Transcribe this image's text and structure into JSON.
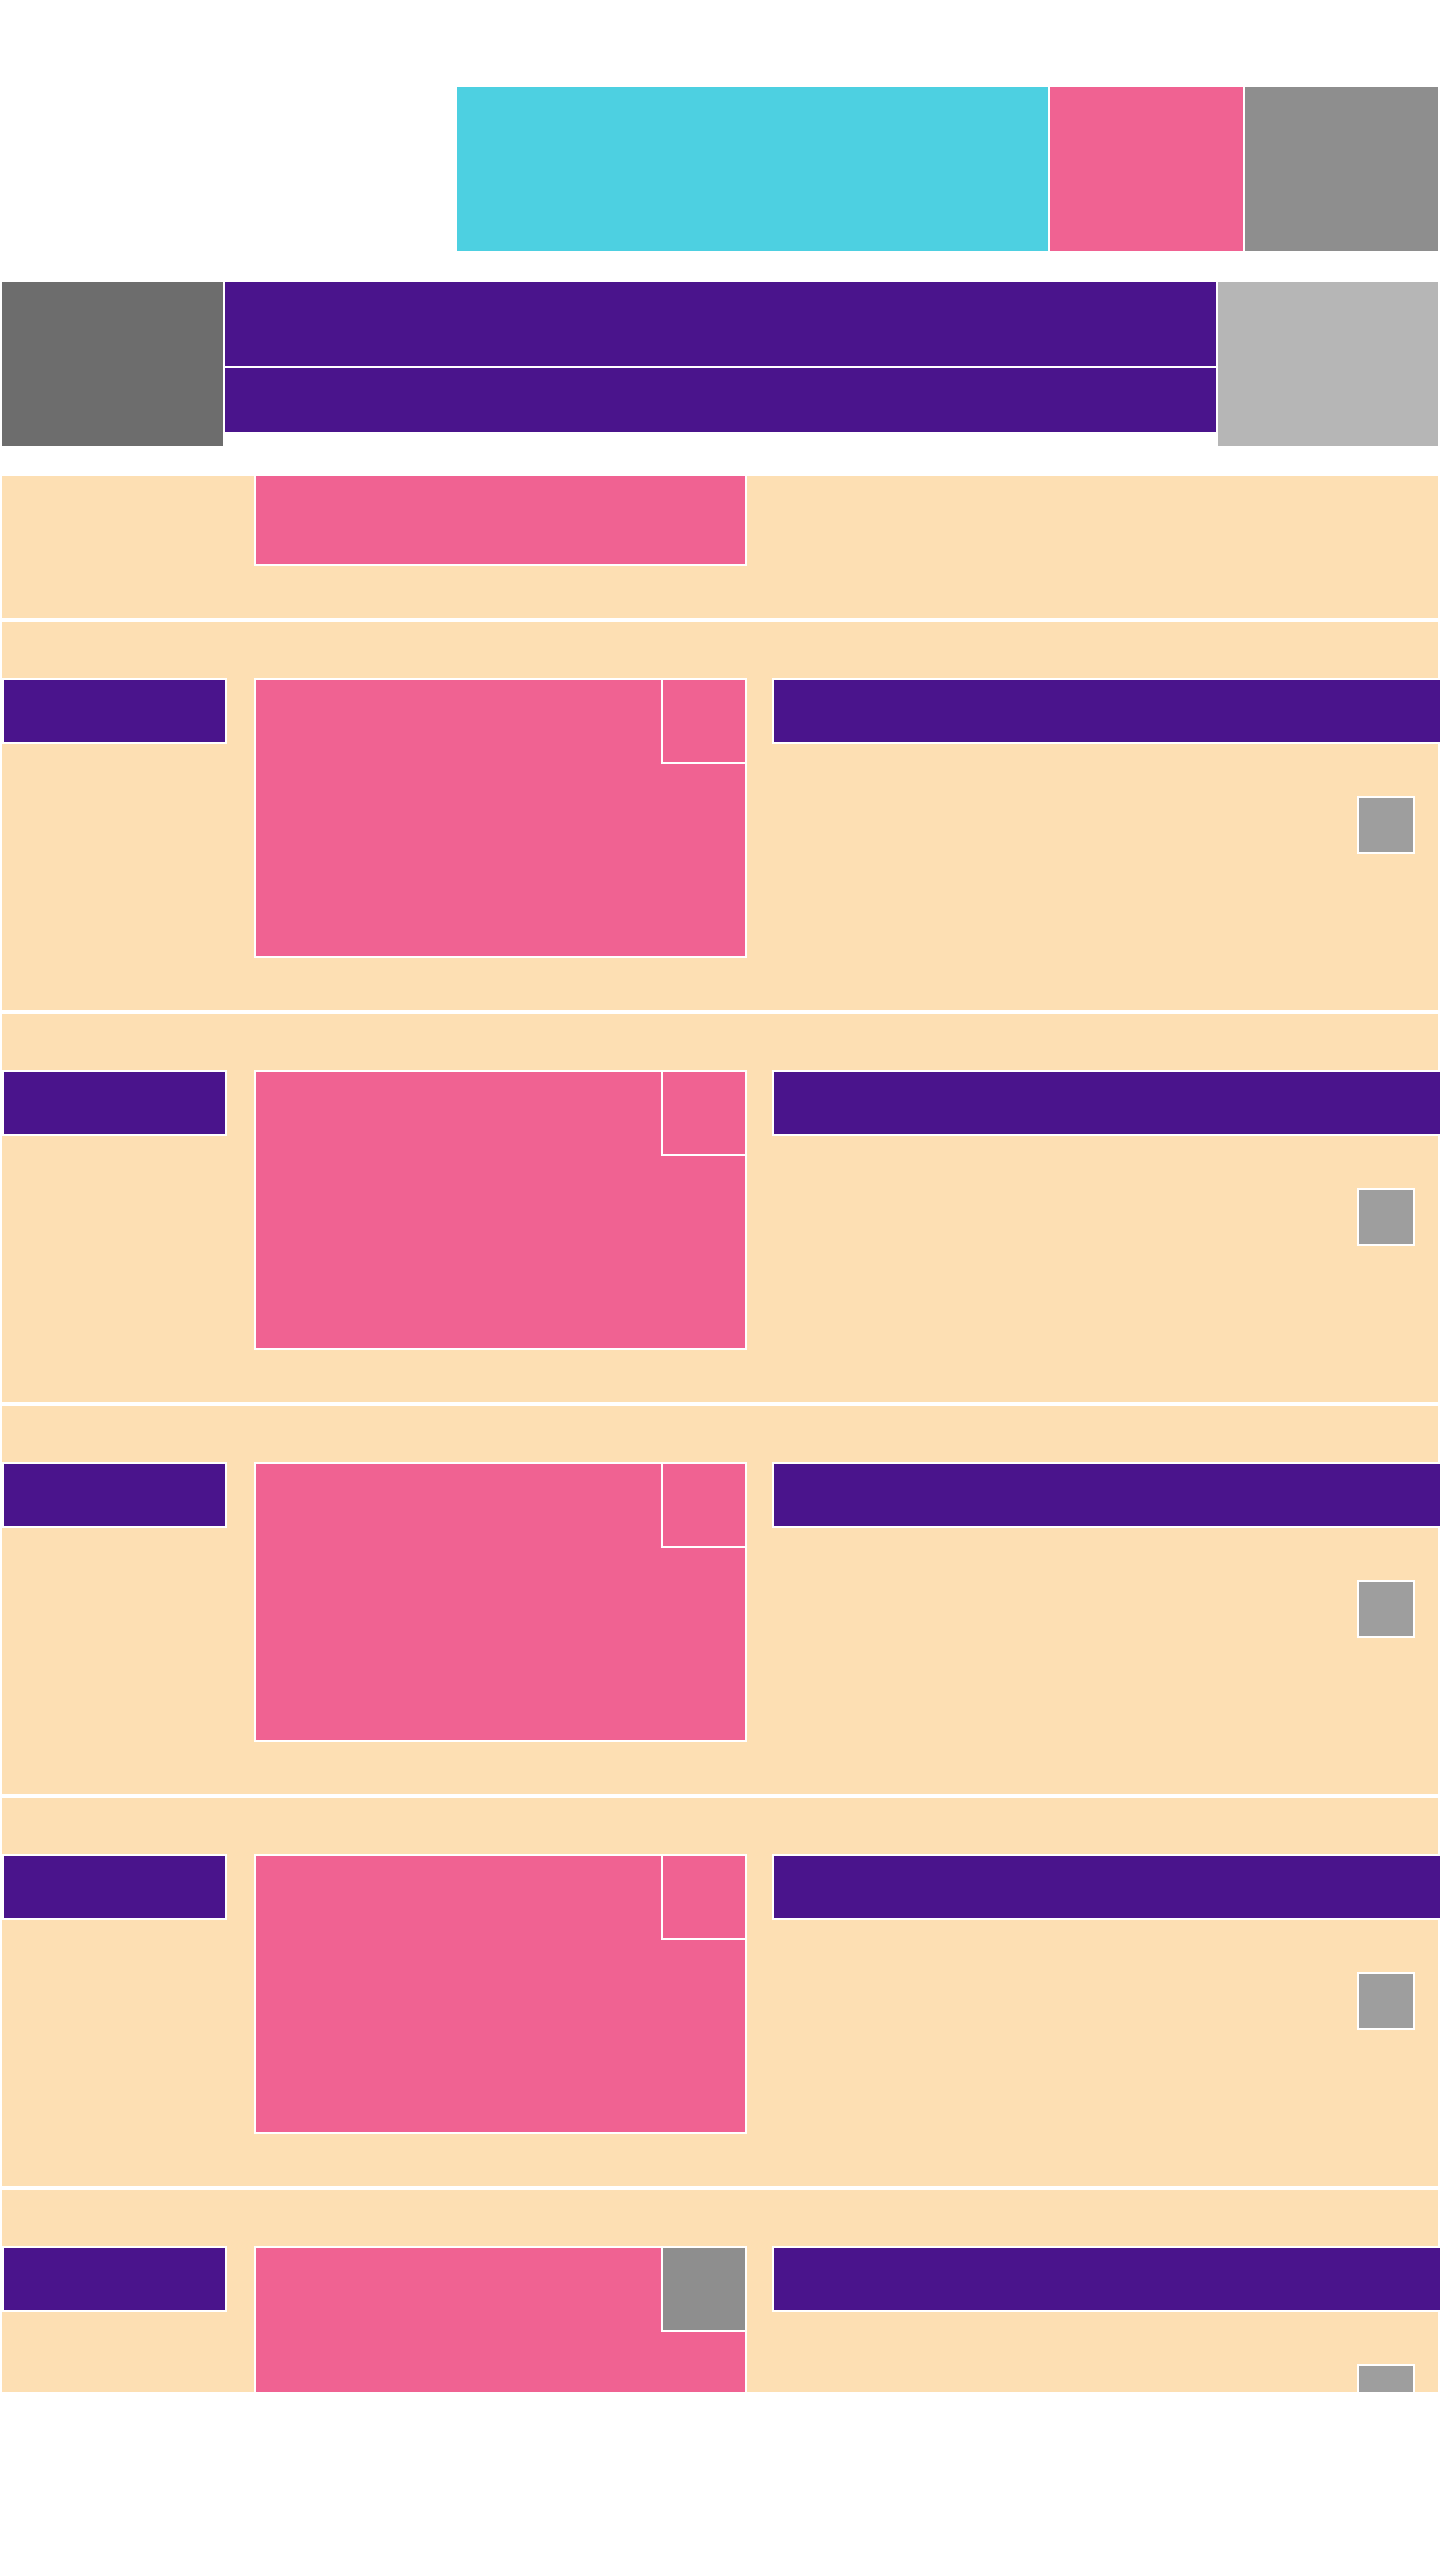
{
  "colors": {
    "background": "#ffffff",
    "cyan": "#4dd0e1",
    "pink": "#f06292",
    "gray_dark": "#6d6d6d",
    "gray_mid": "#8e8e8e",
    "gray_light": "#b6b6b6",
    "gray_action": "#9e9e9e",
    "purple": "#4a148c",
    "peach": "#fddfb3"
  },
  "header": {
    "top_blocks": [
      {
        "name": "cyan-banner"
      },
      {
        "name": "pink-tile"
      },
      {
        "name": "gray-tile"
      }
    ],
    "title": "",
    "subtitle": ""
  },
  "feed": {
    "items": [
      {
        "tag": "",
        "title": "",
        "thumb_badge": "pink"
      },
      {
        "tag": "",
        "title": "",
        "thumb_badge": "pink"
      },
      {
        "tag": "",
        "title": "",
        "thumb_badge": "pink"
      },
      {
        "tag": "",
        "title": "",
        "thumb_badge": "pink"
      },
      {
        "tag": "",
        "title": "",
        "thumb_badge": "pink"
      },
      {
        "tag": "",
        "title": "",
        "thumb_badge": "gray"
      }
    ]
  }
}
